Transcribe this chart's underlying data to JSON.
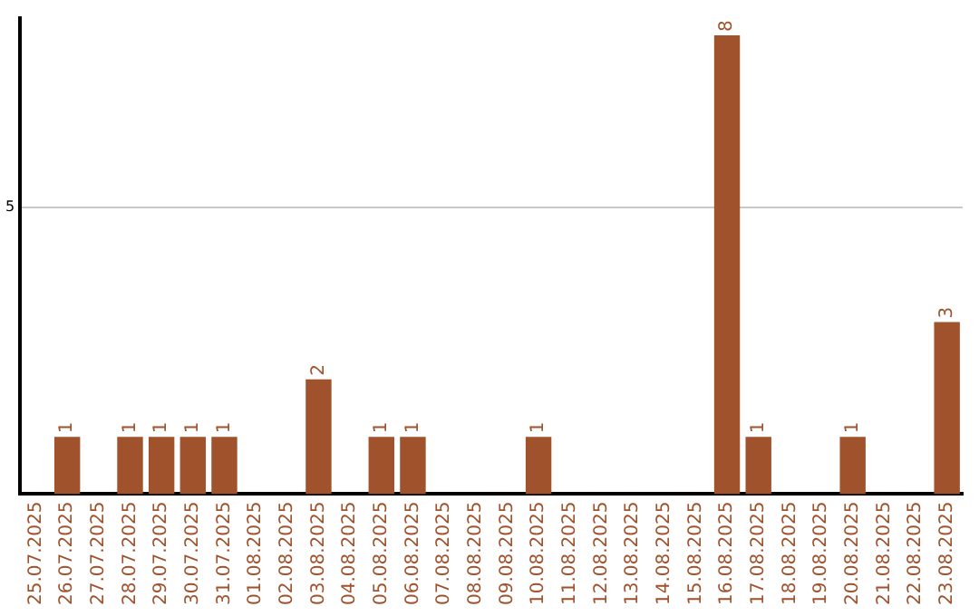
{
  "chart_data": {
    "type": "bar",
    "categories": [
      "25.07.2025",
      "26.07.2025",
      "27.07.2025",
      "28.07.2025",
      "29.07.2025",
      "30.07.2025",
      "31.07.2025",
      "01.08.2025",
      "02.08.2025",
      "03.08.2025",
      "04.08.2025",
      "05.08.2025",
      "06.08.2025",
      "07.08.2025",
      "08.08.2025",
      "09.08.2025",
      "10.08.2025",
      "11.08.2025",
      "12.08.2025",
      "13.08.2025",
      "14.08.2025",
      "15.08.2025",
      "16.08.2025",
      "17.08.2025",
      "18.08.2025",
      "19.08.2025",
      "20.08.2025",
      "21.08.2025",
      "22.08.2025",
      "23.08.2025"
    ],
    "values": [
      0,
      1,
      0,
      1,
      1,
      1,
      1,
      0,
      0,
      2,
      0,
      1,
      1,
      0,
      0,
      0,
      1,
      0,
      0,
      0,
      0,
      0,
      8,
      1,
      0,
      0,
      1,
      0,
      0,
      3
    ],
    "value_labels": [
      null,
      "1",
      null,
      "1",
      "1",
      "1",
      "1",
      null,
      null,
      "2",
      null,
      "1",
      "1",
      null,
      null,
      null,
      "1",
      null,
      null,
      null,
      null,
      null,
      "8",
      "1",
      null,
      null,
      "1",
      null,
      null,
      "3"
    ],
    "color": "#a0522d",
    "ylim": [
      0,
      8.3
    ],
    "yticks": [
      5
    ],
    "grid": "y",
    "legend": false
  }
}
